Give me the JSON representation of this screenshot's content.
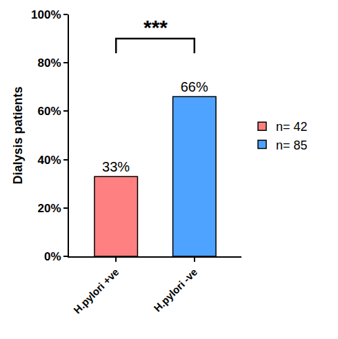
{
  "chart_data": {
    "type": "bar",
    "y_label": "Dialysis patients",
    "categories": [
      "H.pylori +ve",
      "H.pylori -ve"
    ],
    "series": [
      {
        "name": "n= 42",
        "color": "#ff8080",
        "values": [
          33,
          null
        ],
        "value_labels": [
          "33%",
          null
        ]
      },
      {
        "name": "n= 85",
        "color": "#4da3ff",
        "values": [
          null,
          66
        ],
        "value_labels": [
          null,
          "66%"
        ]
      }
    ],
    "data_labels": true,
    "ylim": [
      0,
      100
    ],
    "yticks": [
      {
        "value": 0,
        "label": "0%"
      },
      {
        "value": 20,
        "label": "20%"
      },
      {
        "value": 40,
        "label": "40%"
      },
      {
        "value": 60,
        "label": "60%"
      },
      {
        "value": 80,
        "label": "80%"
      },
      {
        "value": 100,
        "label": "100%"
      }
    ],
    "grid": false,
    "legend": "right",
    "annotations": [
      {
        "text": "***",
        "from": "H.pylori +ve",
        "to": "H.pylori -ve"
      }
    ]
  }
}
